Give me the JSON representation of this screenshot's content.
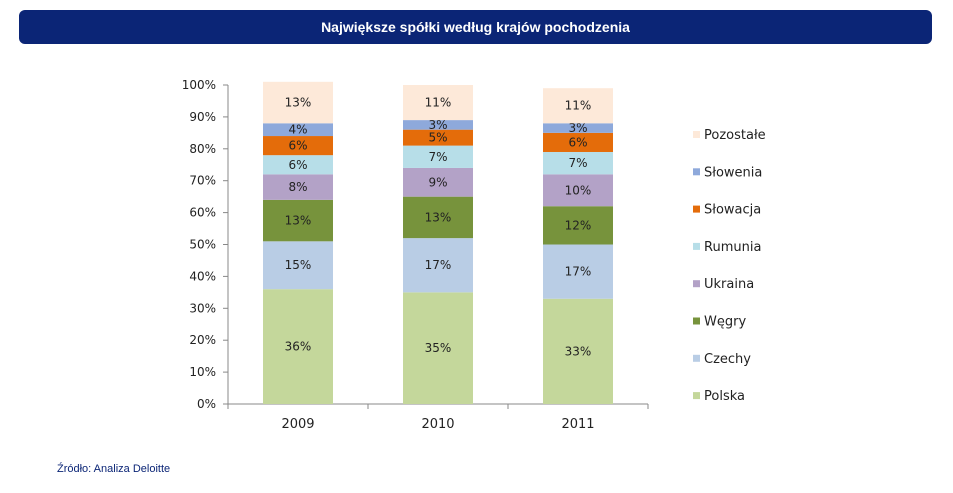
{
  "title": "Największe spółki według krajów pochodzenia",
  "source": "Źródło: Analiza Deloitte",
  "chart_data": {
    "type": "bar",
    "stacked": true,
    "categories": [
      "2009",
      "2010",
      "2011"
    ],
    "ylim": [
      0,
      100
    ],
    "y_ticks": [
      "0%",
      "10%",
      "20%",
      "30%",
      "40%",
      "50%",
      "60%",
      "70%",
      "80%",
      "90%",
      "100%"
    ],
    "grid": false,
    "legend_position": "right",
    "series": [
      {
        "name": "Polska",
        "color": "#c4d79b",
        "values": [
          36,
          35,
          33
        ],
        "labels": [
          "36%",
          "35%",
          "33%"
        ]
      },
      {
        "name": "Czechy",
        "color": "#b9cde5",
        "values": [
          15,
          17,
          17
        ],
        "labels": [
          "15%",
          "17%",
          "17%"
        ]
      },
      {
        "name": "Węgry",
        "color": "#77933c",
        "values": [
          13,
          13,
          12
        ],
        "labels": [
          "13%",
          "13%",
          "12%"
        ]
      },
      {
        "name": "Ukraina",
        "color": "#b3a2c7",
        "values": [
          8,
          9,
          10
        ],
        "labels": [
          "8%",
          "9%",
          "10%"
        ]
      },
      {
        "name": "Rumunia",
        "color": "#b7dee8",
        "values": [
          6,
          7,
          7
        ],
        "labels": [
          "6%",
          "7%",
          "7%"
        ]
      },
      {
        "name": "Słowacja",
        "color": "#e46c0a",
        "values": [
          6,
          5,
          6
        ],
        "labels": [
          "6%",
          "5%",
          "6%"
        ]
      },
      {
        "name": "Słowenia",
        "color": "#8ea9db",
        "values": [
          4,
          3,
          3
        ],
        "labels": [
          "4%",
          "3%",
          "3%"
        ]
      },
      {
        "name": "Pozostałe",
        "color": "#fde9d9",
        "values": [
          13,
          11,
          11
        ],
        "labels": [
          "13%",
          "11%",
          "11%"
        ]
      }
    ]
  }
}
